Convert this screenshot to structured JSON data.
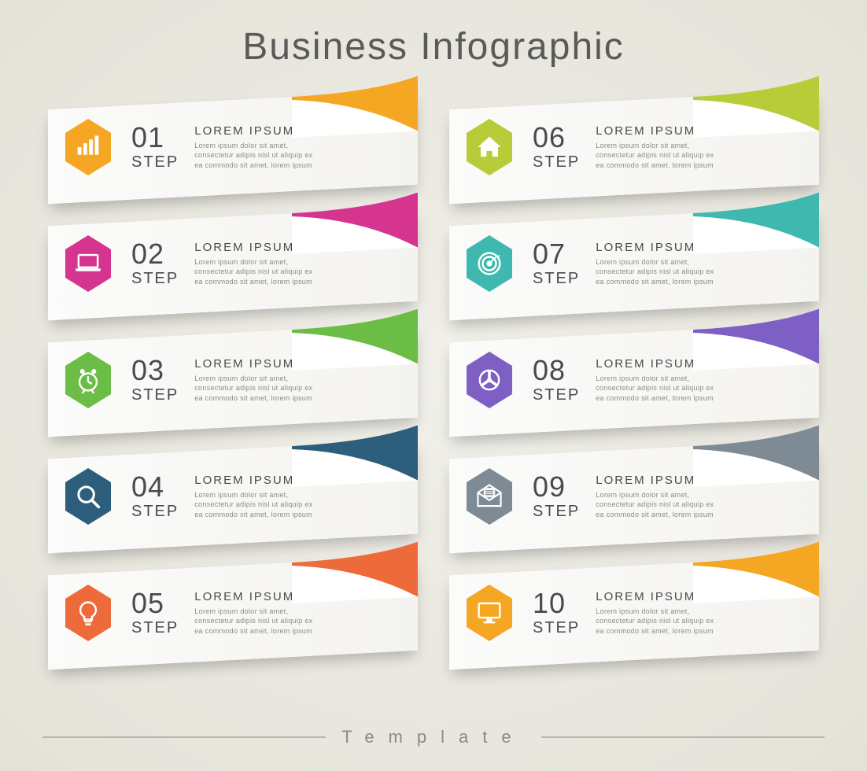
{
  "title": "Business Infographic",
  "footer_label": "Template",
  "step_label": "STEP",
  "heading_text": "LOREM IPSUM",
  "body_text": "Lorem ipsum dolor sit amet, consectetur adipis nisl ut aliquip ex ea commodo sit amet, lorem ipsum",
  "card_bg": "#fbfbfa",
  "card_shadow": "rgba(0,0,0,0.25)",
  "title_color": "#5a5a5a",
  "text_color": "#4a4a4a",
  "body_color": "#8a8a88",
  "icon_color": "#ffffff",
  "steps": [
    {
      "num": "01",
      "color": "#f5a623",
      "icon": "chart"
    },
    {
      "num": "02",
      "color": "#d6358f",
      "icon": "laptop"
    },
    {
      "num": "03",
      "color": "#6cbd45",
      "icon": "clock"
    },
    {
      "num": "04",
      "color": "#2d5f7c",
      "icon": "search"
    },
    {
      "num": "05",
      "color": "#ed6b3b",
      "icon": "bulb"
    },
    {
      "num": "06",
      "color": "#b8cc3a",
      "icon": "home"
    },
    {
      "num": "07",
      "color": "#3fb8af",
      "icon": "target"
    },
    {
      "num": "08",
      "color": "#7e5fc4",
      "icon": "gear"
    },
    {
      "num": "09",
      "color": "#7e8a94",
      "icon": "mail"
    },
    {
      "num": "10",
      "color": "#f5a623",
      "icon": "monitor"
    }
  ]
}
